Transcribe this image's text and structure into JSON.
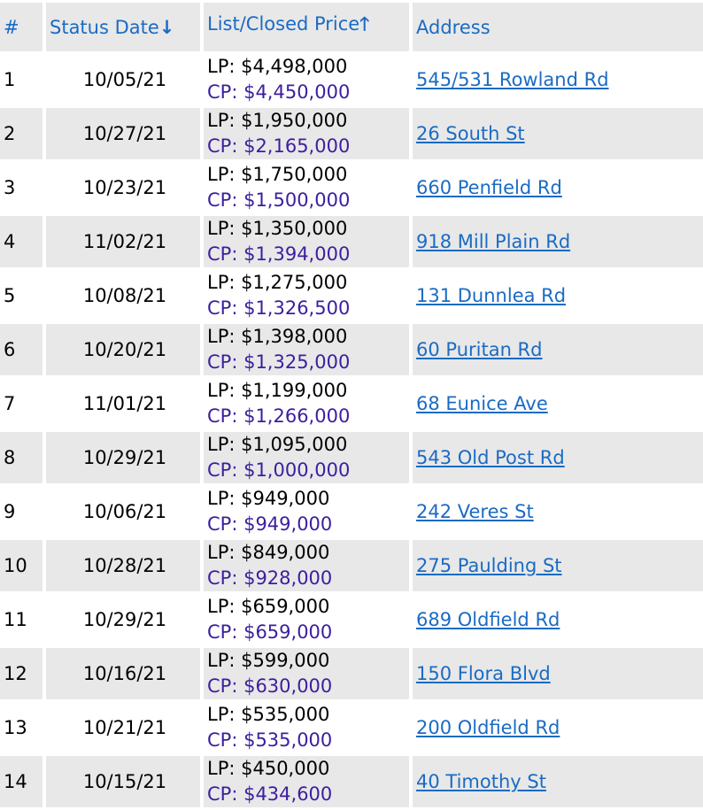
{
  "columns": {
    "num": "#",
    "status_date": "Status Date",
    "status_sort_icon": "arrow-down-icon",
    "price": "List/Closed Price",
    "price_sort_icon": "arrow-up-icon",
    "address": "Address"
  },
  "colors": {
    "link": "#1a6bc4",
    "closed_price": "#3d1e9e",
    "row_alt": "#e8e8e8"
  },
  "rows": [
    {
      "num": "1",
      "date": "10/05/21",
      "lp": "LP: $4,498,000",
      "cp": "CP: $4,450,000",
      "address": "545/531 Rowland Rd"
    },
    {
      "num": "2",
      "date": "10/27/21",
      "lp": "LP: $1,950,000",
      "cp": "CP: $2,165,000",
      "address": "26 South St"
    },
    {
      "num": "3",
      "date": "10/23/21",
      "lp": "LP: $1,750,000",
      "cp": "CP: $1,500,000",
      "address": "660 Penfield Rd"
    },
    {
      "num": "4",
      "date": "11/02/21",
      "lp": "LP: $1,350,000",
      "cp": "CP: $1,394,000",
      "address": "918 Mill Plain Rd"
    },
    {
      "num": "5",
      "date": "10/08/21",
      "lp": "LP: $1,275,000",
      "cp": "CP: $1,326,500",
      "address": "131 Dunnlea Rd"
    },
    {
      "num": "6",
      "date": "10/20/21",
      "lp": "LP: $1,398,000",
      "cp": "CP: $1,325,000",
      "address": "60 Puritan Rd"
    },
    {
      "num": "7",
      "date": "11/01/21",
      "lp": "LP: $1,199,000",
      "cp": "CP: $1,266,000",
      "address": "68 Eunice Ave"
    },
    {
      "num": "8",
      "date": "10/29/21",
      "lp": "LP: $1,095,000",
      "cp": "CP: $1,000,000",
      "address": "543 Old Post Rd"
    },
    {
      "num": "9",
      "date": "10/06/21",
      "lp": "LP: $949,000",
      "cp": "CP: $949,000",
      "address": "242 Veres St"
    },
    {
      "num": "10",
      "date": "10/28/21",
      "lp": "LP: $849,000",
      "cp": "CP: $928,000",
      "address": "275 Paulding St"
    },
    {
      "num": "11",
      "date": "10/29/21",
      "lp": "LP: $659,000",
      "cp": "CP: $659,000",
      "address": "689 Oldfield Rd"
    },
    {
      "num": "12",
      "date": "10/16/21",
      "lp": "LP: $599,000",
      "cp": "CP: $630,000",
      "address": "150 Flora Blvd"
    },
    {
      "num": "13",
      "date": "10/21/21",
      "lp": "LP: $535,000",
      "cp": "CP: $535,000",
      "address": "200 Oldfield Rd"
    },
    {
      "num": "14",
      "date": "10/15/21",
      "lp": "LP: $450,000",
      "cp": "CP: $434,600",
      "address": "40 Timothy St"
    }
  ]
}
